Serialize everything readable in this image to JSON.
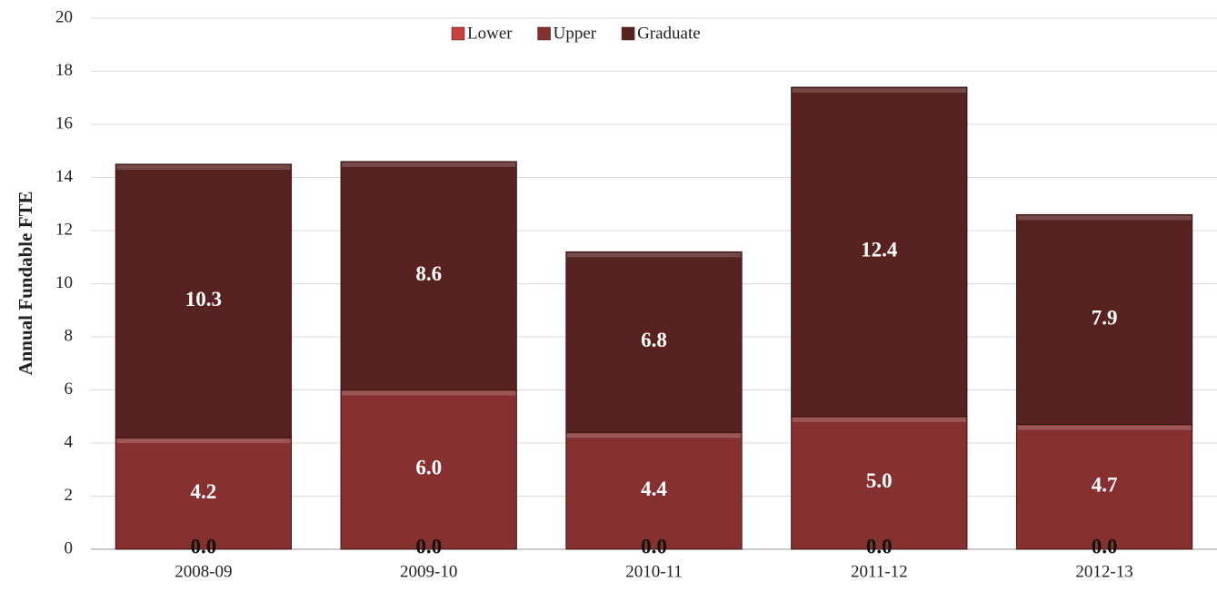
{
  "chart_data": {
    "type": "stacked_bar",
    "y_axis_label": "Annual Fundable FTE",
    "categories": [
      "2008-09",
      "2009-10",
      "2010-11",
      "2011-12",
      "2012-13"
    ],
    "series": [
      {
        "name": "Lower",
        "color": "#c9403c",
        "values": [
          0,
          0,
          0,
          0,
          0
        ],
        "value_labels": [
          "0.0",
          "0.0",
          "0.0",
          "0.0",
          "0.0"
        ]
      },
      {
        "name": "Upper",
        "color": "#863130",
        "values": [
          4.2,
          6.0,
          4.4,
          5.0,
          4.7
        ],
        "value_labels": [
          "4.2",
          "6.0",
          "4.4",
          "5.0",
          "4.7"
        ]
      },
      {
        "name": "Graduate",
        "color": "#572220",
        "values": [
          10.3,
          8.6,
          6.8,
          12.4,
          7.9
        ],
        "value_labels": [
          "10.3",
          "8.6",
          "6.8",
          "12.4",
          "7.9"
        ]
      }
    ],
    "ylim": [
      0,
      20
    ],
    "yticks": [
      0,
      2,
      4,
      6,
      8,
      10,
      12,
      14,
      16,
      18,
      20
    ],
    "grid": true,
    "legend": "top"
  }
}
